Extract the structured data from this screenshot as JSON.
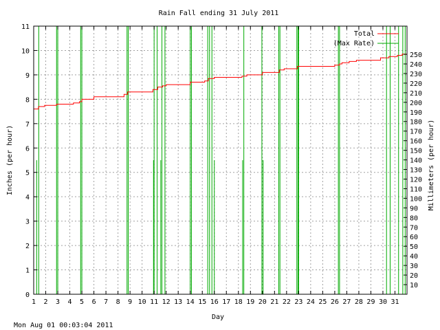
{
  "chart_data": {
    "type": "line",
    "title": "Rain Fall ending 31 July 2011",
    "xlabel": "Day",
    "ylabel": "Inches (per hour)",
    "y2label": "Millimeters (per hour)",
    "timestamp": "Mon Aug 01 00:03:04 2011",
    "xlim": [
      1,
      32
    ],
    "ylim": [
      0,
      11
    ],
    "y2lim": [
      0,
      279.4
    ],
    "x_ticks": [
      1,
      2,
      3,
      4,
      5,
      6,
      7,
      8,
      9,
      10,
      11,
      12,
      13,
      14,
      15,
      16,
      17,
      18,
      19,
      20,
      21,
      22,
      23,
      24,
      25,
      26,
      27,
      28,
      29,
      30,
      31
    ],
    "y_ticks": [
      0,
      1,
      2,
      3,
      4,
      5,
      6,
      7,
      8,
      9,
      10,
      11
    ],
    "y2_ticks": [
      10,
      20,
      30,
      40,
      50,
      60,
      70,
      80,
      90,
      100,
      110,
      120,
      130,
      140,
      150,
      160,
      170,
      180,
      190,
      200,
      210,
      220,
      230,
      240,
      250
    ],
    "grid": true,
    "legend_position": "top-right",
    "series": [
      {
        "name": "Total",
        "color": "#ff0000",
        "style": "step",
        "points": [
          [
            1.0,
            7.6
          ],
          [
            1.4,
            7.6
          ],
          [
            1.4,
            7.7
          ],
          [
            1.9,
            7.7
          ],
          [
            1.9,
            7.75
          ],
          [
            2.9,
            7.75
          ],
          [
            2.9,
            7.8
          ],
          [
            4.3,
            7.8
          ],
          [
            4.3,
            7.85
          ],
          [
            4.8,
            7.85
          ],
          [
            4.8,
            7.9
          ],
          [
            5.0,
            7.9
          ],
          [
            5.0,
            8.0
          ],
          [
            6.0,
            8.0
          ],
          [
            6.0,
            8.1
          ],
          [
            8.5,
            8.1
          ],
          [
            8.5,
            8.2
          ],
          [
            8.8,
            8.2
          ],
          [
            8.8,
            8.3
          ],
          [
            10.9,
            8.3
          ],
          [
            10.9,
            8.4
          ],
          [
            11.3,
            8.4
          ],
          [
            11.3,
            8.5
          ],
          [
            11.7,
            8.5
          ],
          [
            11.7,
            8.55
          ],
          [
            12.0,
            8.55
          ],
          [
            12.0,
            8.6
          ],
          [
            14.0,
            8.6
          ],
          [
            14.0,
            8.7
          ],
          [
            15.2,
            8.7
          ],
          [
            15.2,
            8.75
          ],
          [
            15.5,
            8.75
          ],
          [
            15.5,
            8.85
          ],
          [
            16.0,
            8.85
          ],
          [
            16.0,
            8.9
          ],
          [
            18.3,
            8.9
          ],
          [
            18.3,
            8.95
          ],
          [
            18.7,
            8.95
          ],
          [
            18.7,
            9.0
          ],
          [
            20.0,
            9.0
          ],
          [
            20.0,
            9.1
          ],
          [
            21.4,
            9.1
          ],
          [
            21.4,
            9.2
          ],
          [
            21.8,
            9.2
          ],
          [
            21.8,
            9.25
          ],
          [
            22.9,
            9.25
          ],
          [
            22.9,
            9.35
          ],
          [
            26.0,
            9.35
          ],
          [
            26.0,
            9.4
          ],
          [
            26.4,
            9.4
          ],
          [
            26.4,
            9.45
          ],
          [
            26.6,
            9.45
          ],
          [
            26.6,
            9.5
          ],
          [
            27.2,
            9.5
          ],
          [
            27.2,
            9.55
          ],
          [
            27.8,
            9.55
          ],
          [
            27.8,
            9.6
          ],
          [
            29.8,
            9.6
          ],
          [
            29.8,
            9.7
          ],
          [
            30.5,
            9.7
          ],
          [
            30.5,
            9.75
          ],
          [
            31.2,
            9.75
          ],
          [
            31.2,
            9.8
          ],
          [
            31.6,
            9.8
          ],
          [
            31.6,
            9.85
          ],
          [
            32.0,
            9.85
          ]
        ]
      },
      {
        "name": "(Max Rate)",
        "color": "#00aa00",
        "style": "spikes",
        "spikes": [
          [
            1.25,
            5.5
          ],
          [
            1.42,
            11
          ],
          [
            2.9,
            11
          ],
          [
            3.0,
            11
          ],
          [
            4.9,
            11
          ],
          [
            5.0,
            11
          ],
          [
            8.75,
            11
          ],
          [
            8.85,
            11
          ],
          [
            10.95,
            5.5
          ],
          [
            11.0,
            11
          ],
          [
            11.25,
            11
          ],
          [
            11.55,
            5.5
          ],
          [
            11.65,
            11
          ],
          [
            11.9,
            11
          ],
          [
            14.0,
            11
          ],
          [
            14.1,
            11
          ],
          [
            15.45,
            11
          ],
          [
            15.6,
            11
          ],
          [
            15.8,
            11
          ],
          [
            16.0,
            5.5
          ],
          [
            18.35,
            5.5
          ],
          [
            18.45,
            11
          ],
          [
            19.95,
            11
          ],
          [
            20.05,
            5.5
          ],
          [
            21.35,
            11
          ],
          [
            21.45,
            11
          ],
          [
            22.85,
            11
          ],
          [
            22.95,
            11
          ],
          [
            23.0,
            11
          ],
          [
            26.3,
            11
          ],
          [
            26.4,
            11
          ],
          [
            30.3,
            11
          ],
          [
            30.6,
            11
          ],
          [
            31.3,
            11
          ],
          [
            31.65,
            11
          ],
          [
            31.85,
            11
          ]
        ]
      }
    ]
  }
}
